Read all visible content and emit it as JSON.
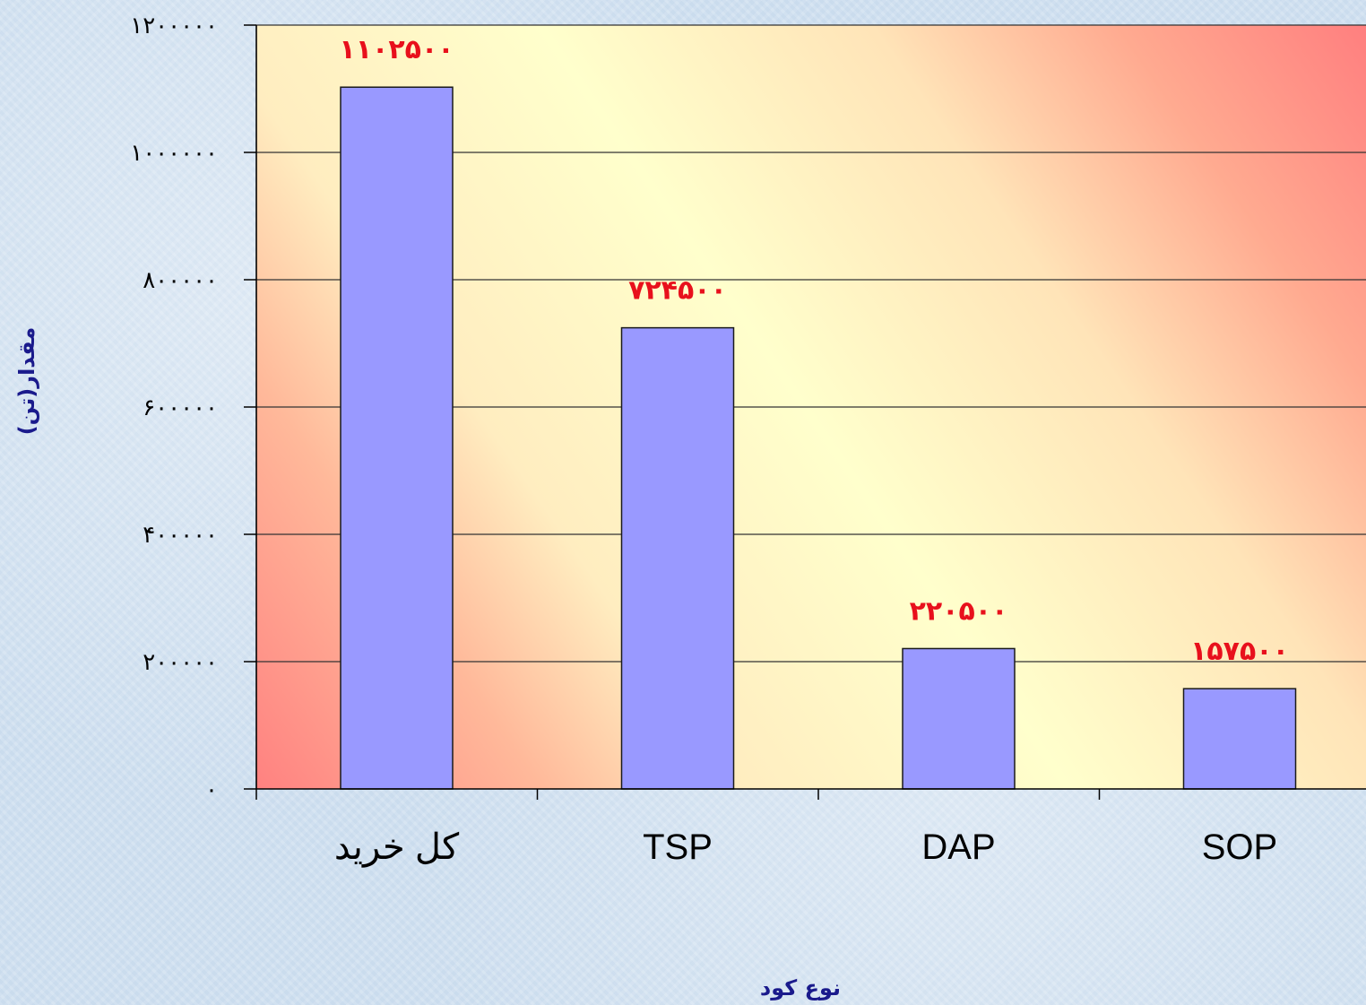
{
  "chart_data": {
    "type": "bar",
    "categories": [
      "کل خرید",
      "TSP",
      "DAP",
      "SOP"
    ],
    "values": [
      1102500,
      724500,
      220500,
      157500
    ],
    "data_labels": [
      "۱۱۰۲۵۰۰",
      "۷۲۴۵۰۰",
      "۲۲۰۵۰۰",
      "۱۵۷۵۰۰"
    ],
    "ytick_values": [
      0,
      200000,
      400000,
      600000,
      800000,
      1000000,
      1200000
    ],
    "ytick_labels": [
      "۰",
      "۲۰۰۰۰۰",
      "۴۰۰۰۰۰",
      "۶۰۰۰۰۰",
      "۸۰۰۰۰۰",
      "۱۰۰۰۰۰۰",
      "۱۲۰۰۰۰۰"
    ],
    "ylim": [
      0,
      1200000
    ],
    "xlabel": "نوع کود",
    "ylabel": "مقدار(تن)",
    "grid": true,
    "legend": "none"
  },
  "colors": {
    "bar_fill": "#9999ff",
    "bar_stroke": "#1a1a1a",
    "data_label": "#e8101c",
    "axis_title": "#1a1a8c",
    "plot_light": "#ffffcc",
    "plot_red": "#ff8080"
  }
}
